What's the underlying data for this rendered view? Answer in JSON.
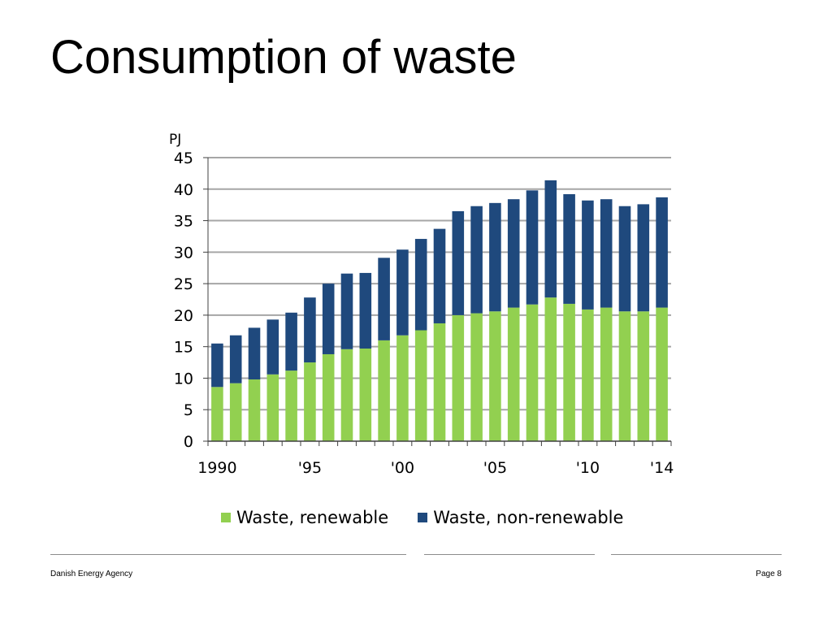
{
  "slide": {
    "title": "Consumption of waste"
  },
  "footer": {
    "left": "Danish Energy Agency",
    "right": "Page 8"
  },
  "colors": {
    "renewable": "#92d050",
    "non_renewable": "#1f497d",
    "grid": "#a6a6a6",
    "axis": "#404040"
  },
  "chart_data": {
    "type": "bar",
    "stacked": true,
    "unit_label": "PJ",
    "x": [
      1990,
      1991,
      1992,
      1993,
      1994,
      1995,
      1996,
      1997,
      1998,
      1999,
      2000,
      2001,
      2002,
      2003,
      2004,
      2005,
      2006,
      2007,
      2008,
      2009,
      2010,
      2011,
      2012,
      2013,
      2014
    ],
    "x_tick_labels": [
      {
        "x": 1990,
        "label": "1990"
      },
      {
        "x": 1995,
        "label": "'95"
      },
      {
        "x": 2000,
        "label": "'00"
      },
      {
        "x": 2005,
        "label": "'05"
      },
      {
        "x": 2010,
        "label": "'10"
      },
      {
        "x": 2014,
        "label": "'14"
      }
    ],
    "series": [
      {
        "name": "Waste, renewable",
        "color": "#92d050",
        "values": [
          8.6,
          9.2,
          9.8,
          10.6,
          11.2,
          12.5,
          13.8,
          14.6,
          14.7,
          16.0,
          16.8,
          17.6,
          18.7,
          20.0,
          20.3,
          20.6,
          21.2,
          21.7,
          22.8,
          21.8,
          20.9,
          21.2,
          20.6,
          20.6,
          21.2
        ]
      },
      {
        "name": "Waste, non-renewable",
        "color": "#1f497d",
        "values": [
          6.9,
          7.6,
          8.2,
          8.7,
          9.2,
          10.3,
          11.2,
          12.0,
          12.0,
          13.1,
          13.6,
          14.5,
          15.0,
          16.5,
          17.0,
          17.2,
          17.2,
          18.1,
          18.6,
          17.4,
          17.3,
          17.2,
          16.7,
          17.0,
          17.5
        ]
      }
    ],
    "ylim": [
      0,
      45
    ],
    "y_ticks": [
      0,
      5,
      10,
      15,
      20,
      25,
      30,
      35,
      40,
      45
    ],
    "grid": true,
    "legend_position": "bottom"
  }
}
